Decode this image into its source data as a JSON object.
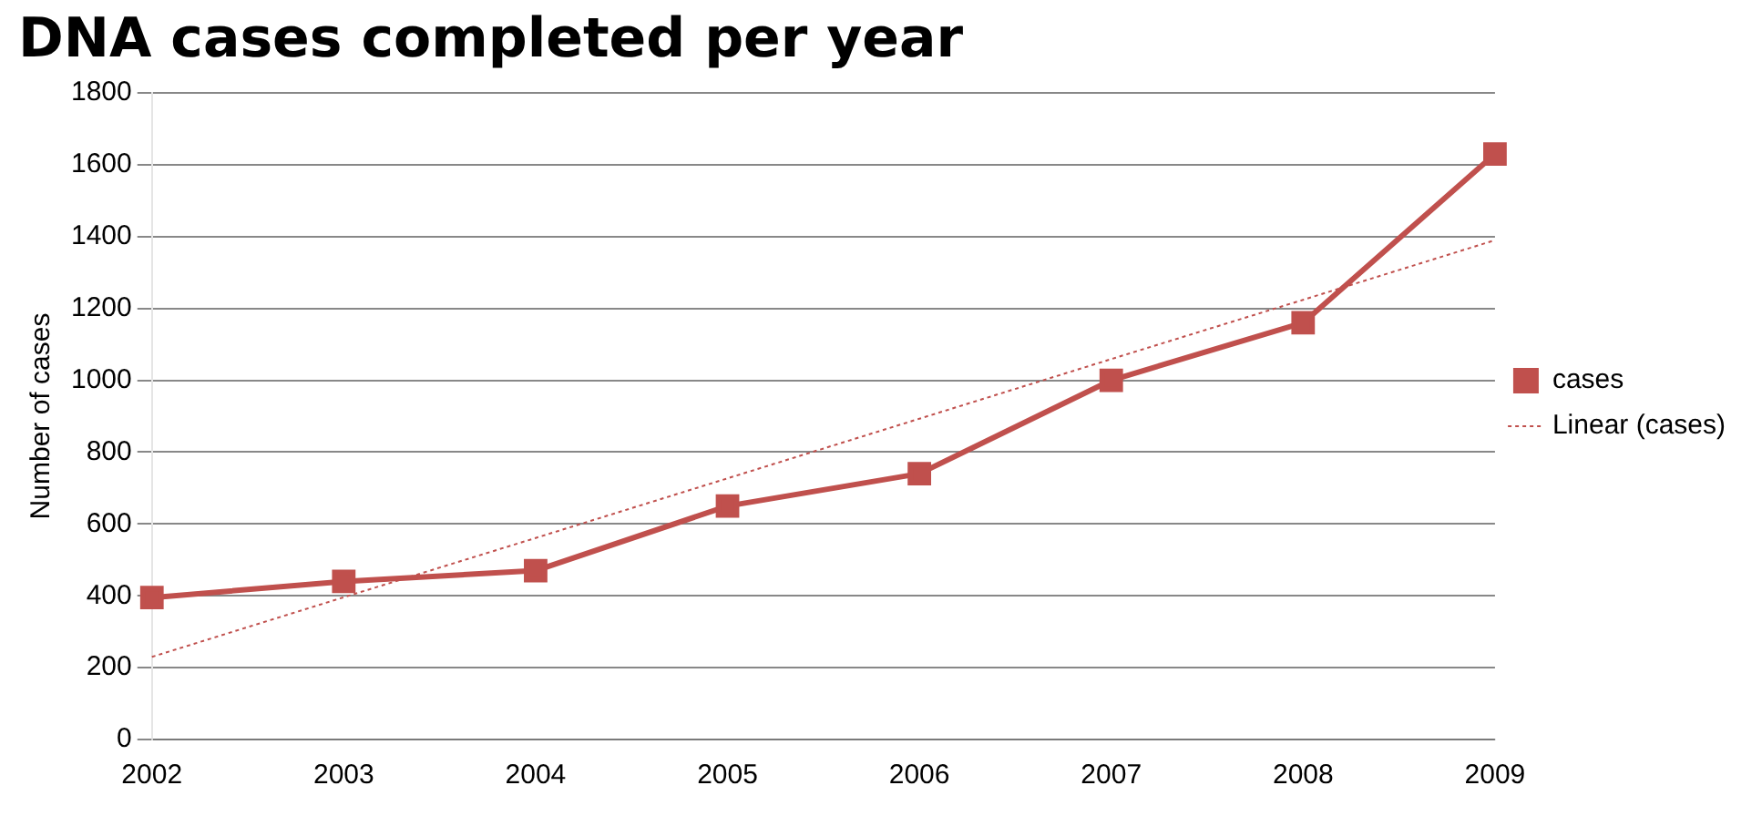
{
  "chart_data": {
    "type": "line",
    "title": "DNA cases completed per year",
    "ylabel": "Number of cases",
    "categories": [
      "2002",
      "2003",
      "2004",
      "2005",
      "2006",
      "2007",
      "2008",
      "2009"
    ],
    "series": [
      {
        "name": "cases",
        "color": "#c0504d",
        "values": [
          395,
          440,
          470,
          650,
          740,
          1000,
          1160,
          1630
        ],
        "marker": "square",
        "line_style": "solid"
      },
      {
        "name": "Linear (cases)",
        "color": "#c0504d",
        "values": [
          230,
          396,
          561,
          727,
          893,
          1059,
          1224,
          1390
        ],
        "marker": "none",
        "line_style": "dotted"
      }
    ],
    "ylim": [
      0,
      1800
    ],
    "yticks": [
      0,
      200,
      400,
      600,
      800,
      1000,
      1200,
      1400,
      1600,
      1800
    ],
    "grid": "y",
    "legend": "right"
  }
}
